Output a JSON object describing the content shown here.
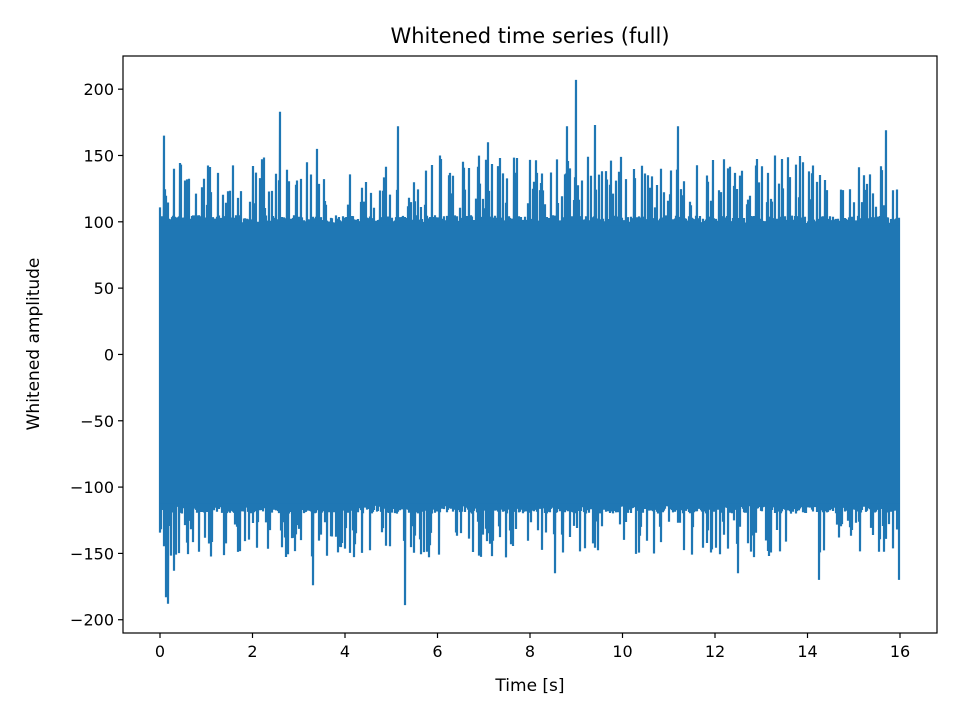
{
  "chart_data": {
    "type": "line",
    "title": "Whitened time series (full)",
    "xlabel": "Time [s]",
    "ylabel": "Whitened amplitude",
    "xlim": [
      -0.8,
      16.8
    ],
    "ylim": [
      -210,
      225
    ],
    "x_ticks": [
      0,
      2,
      4,
      6,
      8,
      10,
      12,
      14,
      16
    ],
    "y_ticks": [
      -200,
      -150,
      -100,
      -50,
      0,
      50,
      100,
      150,
      200
    ],
    "x_tick_labels": [
      "0",
      "2",
      "4",
      "6",
      "8",
      "10",
      "12",
      "14",
      "16"
    ],
    "y_tick_labels": [
      "−200",
      "−150",
      "−100",
      "−50",
      "0",
      "50",
      "100",
      "150",
      "200"
    ],
    "grid": false,
    "series": [
      {
        "color": "#1f77b4",
        "duration": 16,
        "envelope_upper": 105,
        "envelope_lower": -120,
        "peaks_max": [
          {
            "x": 0.09,
            "y": 165
          },
          {
            "x": 0.3,
            "y": 140
          },
          {
            "x": 2.6,
            "y": 183
          },
          {
            "x": 3.4,
            "y": 155
          },
          {
            "x": 5.15,
            "y": 172
          },
          {
            "x": 6.05,
            "y": 150
          },
          {
            "x": 7.1,
            "y": 160
          },
          {
            "x": 8.8,
            "y": 172
          },
          {
            "x": 8.99,
            "y": 207
          },
          {
            "x": 9.4,
            "y": 173
          },
          {
            "x": 11.2,
            "y": 172
          },
          {
            "x": 13.3,
            "y": 150
          },
          {
            "x": 15.7,
            "y": 169
          }
        ],
        "peaks_min": [
          {
            "x": 0.12,
            "y": -183
          },
          {
            "x": 0.18,
            "y": -188
          },
          {
            "x": 0.3,
            "y": -163
          },
          {
            "x": 3.3,
            "y": -174
          },
          {
            "x": 5.3,
            "y": -189
          },
          {
            "x": 8.55,
            "y": -165
          },
          {
            "x": 12.5,
            "y": -165
          },
          {
            "x": 14.25,
            "y": -170
          },
          {
            "x": 15.98,
            "y": -170
          }
        ]
      }
    ]
  }
}
